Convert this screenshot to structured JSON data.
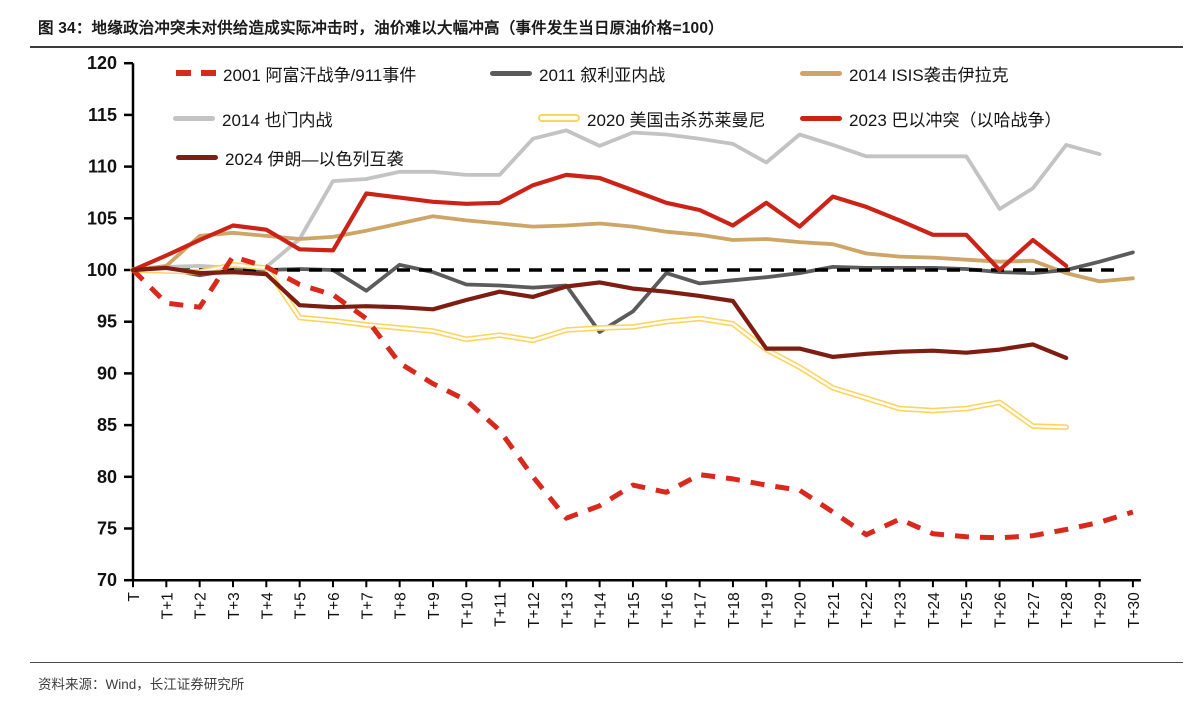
{
  "title": "图 34：地缘政治冲突未对供给造成实际冲击时，油价难以大幅冲高（事件发生当日原油价格=100）",
  "source": "资料来源：Wind，长江证券研究所",
  "colors": {
    "axis": "#000000",
    "baseline_dash": "#000000",
    "title_text": "#1a1a1a",
    "source_text": "#3d3d3d",
    "s2001_red_dashed": "#d8291d",
    "s2011_dark_gray": "#5b5b5b",
    "s2014_isis_tan": "#cda566",
    "s2014_yemen_light_gray": "#c3c3c3",
    "s2020_yellow": "#ffd45c",
    "s2023_red": "#cb2317",
    "s2024_dark_red": "#7e1d12"
  },
  "chart_data": {
    "type": "line",
    "title": "地缘政治冲突未对供给造成实际冲击时，油价难以大幅冲高（事件发生当日原油价格=100）",
    "xlabel": "",
    "ylabel": "",
    "ylim": [
      70,
      120
    ],
    "yticks": [
      70,
      75,
      80,
      85,
      90,
      95,
      100,
      105,
      110,
      115,
      120
    ],
    "grid": false,
    "legend_position": "inside-top-left",
    "baseline": 100,
    "x_labels": [
      "T",
      "T+1",
      "T+2",
      "T+3",
      "T+4",
      "T+5",
      "T+6",
      "T+7",
      "T+8",
      "T+9",
      "T+10",
      "T+11",
      "T+12",
      "T+13",
      "T+14",
      "T+15",
      "T+16",
      "T+17",
      "T+18",
      "T+19",
      "T+20",
      "T+21",
      "T+22",
      "T+23",
      "T+24",
      "T+25",
      "T+26",
      "T+27",
      "T+28",
      "T+29",
      "T+30"
    ],
    "series": [
      {
        "name": "2001 阿富汗战争/911事件",
        "style": "dashed",
        "color": "#d8291d",
        "values": [
          100,
          96.8,
          96.4,
          101.3,
          100.3,
          98.6,
          97.6,
          95.3,
          91,
          89,
          87.4,
          84.5,
          80,
          76,
          77.2,
          79.2,
          78.5,
          80.2,
          79.8,
          79.2,
          78.7,
          76.6,
          74.4,
          75.9,
          74.5,
          74.2,
          74.1,
          74.3,
          74.9,
          75.6,
          76.6
        ]
      },
      {
        "name": "2011 叙利亚内战",
        "style": "solid",
        "color": "#5b5b5b",
        "values": [
          100,
          100.1,
          99.5,
          100,
          100,
          100.1,
          100,
          98,
          100.5,
          99.8,
          98.6,
          98.5,
          98.3,
          98.5,
          94,
          96,
          99.7,
          98.7,
          99,
          99.3,
          99.7,
          100.3,
          100.2,
          100.2,
          100.2,
          100.1,
          99.8,
          99.7,
          100,
          100.8,
          101.7
        ]
      },
      {
        "name": "2014 ISIS袭击伊拉克",
        "style": "solid",
        "color": "#cda566",
        "values": [
          100,
          100.4,
          103.3,
          103.6,
          103.3,
          103,
          103.2,
          103.8,
          104.5,
          105.2,
          104.8,
          104.5,
          104.2,
          104.3,
          104.5,
          104.2,
          103.7,
          103.4,
          102.9,
          103,
          102.7,
          102.5,
          101.6,
          101.3,
          101.2,
          101,
          100.8,
          100.9,
          99.7,
          98.9,
          99.2
        ]
      },
      {
        "name": "2014 也门内战",
        "style": "solid",
        "color": "#c3c3c3",
        "values": [
          100,
          100.3,
          100.4,
          100.2,
          100.3,
          103,
          108.6,
          108.8,
          109.5,
          109.5,
          109.2,
          109.2,
          112.7,
          113.5,
          112,
          113.3,
          113.1,
          112.7,
          112.2,
          110.4,
          113.1,
          112.1,
          111,
          111,
          111,
          111,
          105.9,
          107.9,
          112.1,
          111.2
        ]
      },
      {
        "name": "2020 美国击杀苏莱曼尼",
        "style": "double",
        "color": "#ffd45c",
        "values": [
          100,
          99.9,
          99.8,
          100.5,
          100.2,
          95.4,
          95.1,
          94.7,
          94.4,
          94.1,
          93.3,
          93.7,
          93.2,
          94.2,
          94.4,
          94.5,
          95,
          95.3,
          94.8,
          92.3,
          90.6,
          88.6,
          87.6,
          86.6,
          86.4,
          86.6,
          87.2,
          84.9,
          84.8
        ]
      },
      {
        "name": "2023 巴以冲突（以哈战争）",
        "style": "solid",
        "color": "#cb2317",
        "values": [
          100,
          101.4,
          102.9,
          104.3,
          103.9,
          102,
          101.9,
          107.4,
          107,
          106.6,
          106.4,
          106.5,
          108.2,
          109.2,
          108.9,
          107.7,
          106.5,
          105.8,
          104.3,
          106.5,
          104.2,
          107.1,
          106.1,
          104.8,
          103.4,
          103.4,
          100,
          102.9,
          100.4
        ]
      },
      {
        "name": "2024 伊朗—以色列互袭",
        "style": "solid",
        "color": "#7e1d12",
        "values": [
          100,
          100.2,
          99.7,
          99.8,
          99.6,
          96.6,
          96.4,
          96.5,
          96.4,
          96.2,
          97.1,
          97.9,
          97.4,
          98.4,
          98.8,
          98.2,
          97.9,
          97.5,
          97,
          92.4,
          92.4,
          91.6,
          91.9,
          92.1,
          92.2,
          92,
          92.3,
          92.8,
          91.5
        ]
      }
    ]
  }
}
